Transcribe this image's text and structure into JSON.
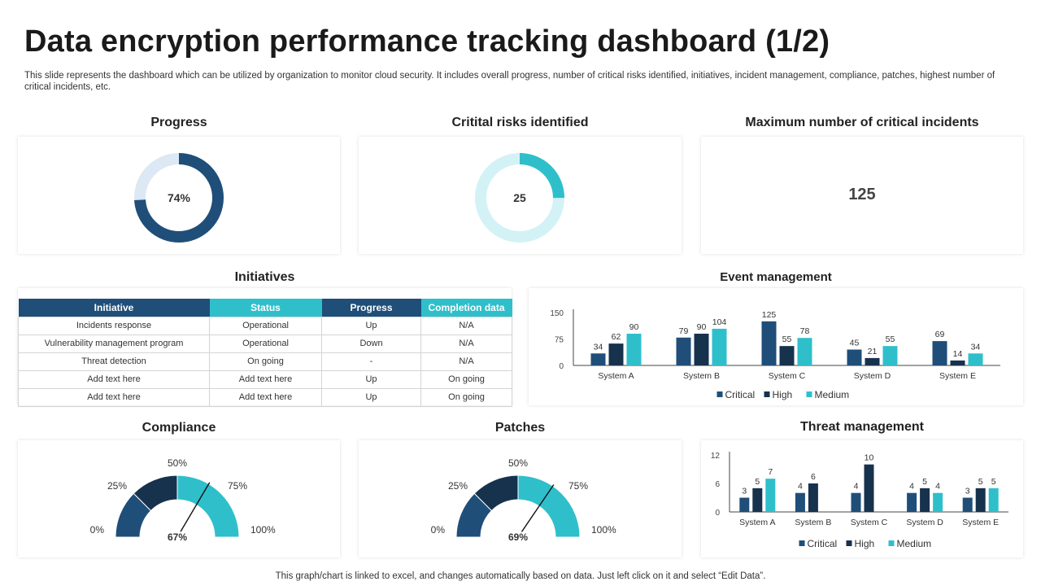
{
  "page": {
    "title": "Data encryption performance tracking dashboard (1/2)",
    "subtitle": "This slide represents the dashboard which can be utilized by organization to monitor cloud security. It includes overall progress, number of critical risks identified, initiatives, incident management, compliance, patches, highest number of critical incidents, etc.",
    "footer": "This graph/chart is linked to excel, and changes automatically based on data. Just left click on it and select “Edit Data”."
  },
  "colors": {
    "navy": "#1f4e79",
    "dark": "#17324d",
    "teal": "#2fbfcb",
    "light_blue": "#dce8f3",
    "light_teal": "#d3f2f5"
  },
  "progress": {
    "title": "Progress",
    "label": "74%",
    "value": 74
  },
  "risks": {
    "title": "Critital risks identified",
    "label": "25",
    "fraction": 0.25
  },
  "incidents": {
    "title": "Maximum number of critical incidents",
    "value": "125"
  },
  "initiatives": {
    "title": "Initiatives",
    "headers": [
      "Initiative",
      "Status",
      "Progress",
      "Completion data"
    ],
    "rows": [
      [
        "Incidents response",
        "Operational",
        "Up",
        "N/A"
      ],
      [
        "Vulnerability management program",
        "Operational",
        "Down",
        "N/A"
      ],
      [
        "Threat detection",
        "On going",
        "-",
        "N/A"
      ],
      [
        "Add text here",
        "Add text here",
        "Up",
        "On going"
      ],
      [
        "Add text here",
        "Add text here",
        "Up",
        "On going"
      ]
    ]
  },
  "event_title": "Event management",
  "compliance": {
    "title": "Compliance",
    "label": "67%",
    "value": 67,
    "ticks": [
      "0%",
      "25%",
      "50%",
      "75%",
      "100%"
    ]
  },
  "patches": {
    "title": "Patches",
    "label": "69%",
    "value": 69,
    "ticks": [
      "0%",
      "25%",
      "50%",
      "75%",
      "100%"
    ]
  },
  "threat_title": "Threat management",
  "chart_data": [
    {
      "type": "bar",
      "title": "Event management",
      "categories": [
        "System A",
        "System B",
        "System C",
        "System D",
        "System E"
      ],
      "series": [
        {
          "name": "Critical",
          "values": [
            34,
            79,
            125,
            45,
            69
          ]
        },
        {
          "name": "High",
          "values": [
            62,
            90,
            55,
            21,
            14
          ]
        },
        {
          "name": "Medium",
          "values": [
            90,
            104,
            78,
            55,
            34
          ]
        }
      ],
      "ylim": [
        0,
        150
      ],
      "yticks": [
        "0",
        "75",
        "150"
      ],
      "legend": "bottom"
    },
    {
      "type": "bar",
      "title": "Threat management",
      "categories": [
        "System A",
        "System B",
        "System C",
        "System D",
        "System E"
      ],
      "series": [
        {
          "name": "Critical",
          "values": [
            3,
            4,
            4,
            4,
            3
          ]
        },
        {
          "name": "High",
          "values": [
            5,
            6,
            10,
            5,
            5
          ]
        },
        {
          "name": "Medium",
          "values": [
            7,
            null,
            null,
            4,
            5
          ]
        }
      ],
      "ylim": [
        0,
        12
      ],
      "yticks": [
        "0",
        "6",
        "12"
      ],
      "legend": "bottom"
    }
  ]
}
